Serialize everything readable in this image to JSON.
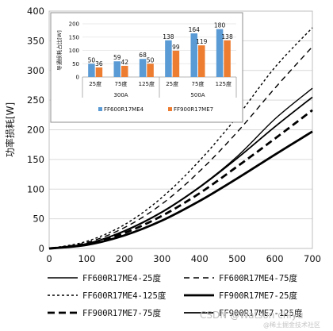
{
  "chart_data": [
    {
      "type": "line",
      "ylabel": "功率损耗[W]",
      "xlim": [
        0,
        700
      ],
      "ylim": [
        0,
        400
      ],
      "x_ticks": [
        0,
        100,
        200,
        300,
        400,
        500,
        600,
        700
      ],
      "y_ticks": [
        0,
        50,
        100,
        150,
        200,
        250,
        300,
        350,
        400
      ],
      "x": [
        0,
        100,
        200,
        300,
        400,
        500,
        600,
        700
      ],
      "series": [
        {
          "name": "FF600R17ME4-25度",
          "style": "solid-thin",
          "values": [
            0,
            8,
            30,
            62,
            104,
            155,
            218,
            270
          ]
        },
        {
          "name": "FF600R17ME4-75度",
          "style": "dash-long",
          "values": [
            0,
            10,
            35,
            75,
            130,
            196,
            270,
            340
          ]
        },
        {
          "name": "FF600R17ME4-125度",
          "style": "dash-short",
          "values": [
            0,
            12,
            40,
            86,
            148,
            222,
            305,
            372
          ]
        },
        {
          "name": "FF900R17ME7-25度",
          "style": "solid-thick",
          "values": [
            0,
            6,
            22,
            47,
            80,
            118,
            158,
            197
          ]
        },
        {
          "name": "FF900R17ME7-75度",
          "style": "dash-thick",
          "values": [
            0,
            7,
            26,
            55,
            93,
            138,
            185,
            233
          ]
        },
        {
          "name": "FF900R17ME7-125度",
          "style": "solid-medium",
          "values": [
            0,
            8,
            29,
            61,
            103,
            152,
            205,
            255
          ]
        }
      ]
    },
    {
      "type": "bar",
      "ylabel": "导通损耗占比[W]",
      "ylim": [
        0,
        200
      ],
      "y_ticks": [
        0,
        50,
        100,
        150,
        200
      ],
      "categories": [
        "25度",
        "75度",
        "125度",
        "25度",
        "75度",
        "125度"
      ],
      "groups": [
        "300A",
        "500A"
      ],
      "series": [
        {
          "name": "FF600R17ME4",
          "color": "#5b9bd5",
          "values": [
            50,
            59,
            68,
            138,
            164,
            180
          ]
        },
        {
          "name": "FF900R17ME7",
          "color": "#ed7d31",
          "values": [
            36,
            42,
            50,
            99,
            119,
            138
          ]
        }
      ]
    }
  ],
  "watermark": "CSDN @Watson chiyu",
  "watermark2": "@稀土掘金技术社区"
}
